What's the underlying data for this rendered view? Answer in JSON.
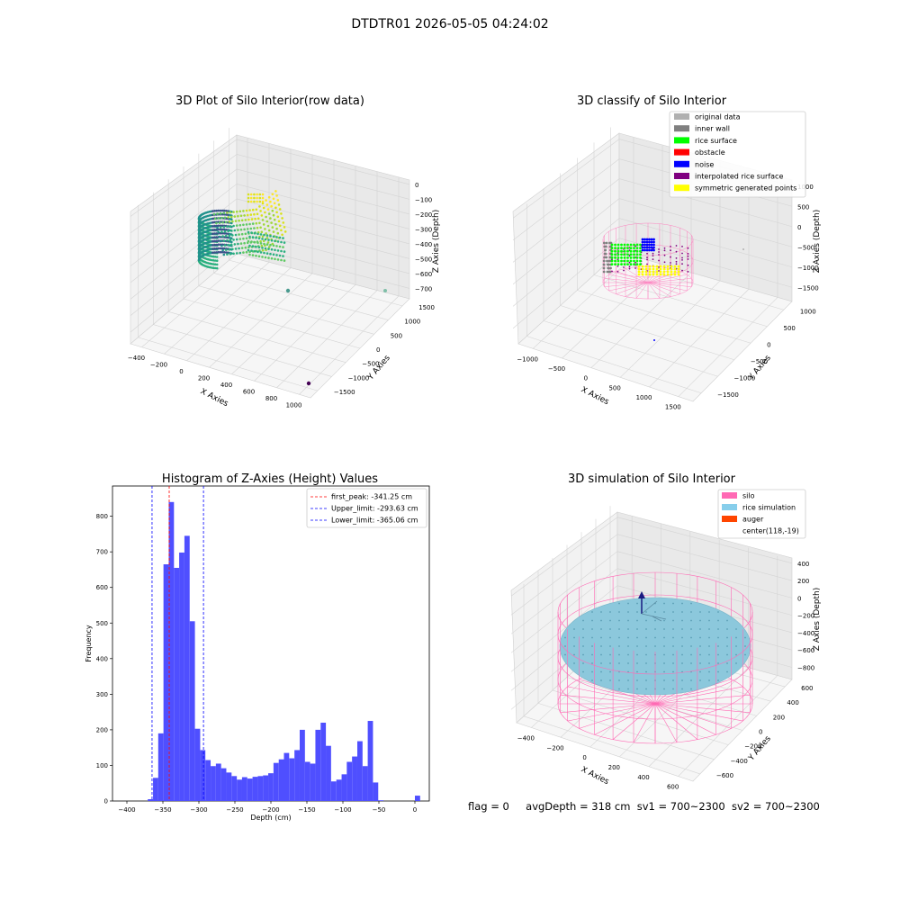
{
  "figure": {
    "title": "DTDTR01 2026-05-05 04:24:02",
    "status_line": {
      "flag": "flag = 0",
      "avg_depth": "avgDepth = 318 cm",
      "sv1": "sv1 = 700~2300",
      "sv2": "sv2 = 700~2300"
    }
  },
  "chart_data": [
    {
      "type": "scatter",
      "projection": "3d",
      "title": "3D Plot of Silo Interior(row data)",
      "xlabel": "X Axies",
      "ylabel": "Y Axies",
      "zlabel": "Z Axies (Depth)",
      "x_ticks": [
        "−400",
        "−200",
        "0",
        "200",
        "400",
        "600",
        "800",
        "1000"
      ],
      "y_ticks": [
        "1500",
        "1000",
        "500",
        "0",
        "−500",
        "−1000",
        "−1500"
      ],
      "z_ticks": [
        "0",
        "−100",
        "−200",
        "−300",
        "−400",
        "−500",
        "−600",
        "−700"
      ],
      "colormap": "viridis by depth",
      "point_cloud": {
        "x_range": [
          -280,
          700
        ],
        "z_range": [
          -540,
          -130
        ],
        "outliers": [
          {
            "x": 200,
            "y": 100,
            "z": -620
          },
          {
            "x": 1100,
            "y": 900,
            "z": -610
          },
          {
            "x": 1050,
            "y": -1400,
            "z": -700
          }
        ]
      }
    },
    {
      "type": "scatter",
      "projection": "3d",
      "title": "3D classify of Silo Interior",
      "xlabel": "X Axies",
      "ylabel": "Y Axies",
      "zlabel": "Z Axies (Depth)",
      "x_ticks": [
        "−1000",
        "−500",
        "0",
        "500",
        "1000",
        "1500"
      ],
      "y_ticks": [
        "1000",
        "500",
        "0",
        "−500",
        "−1000",
        "−1500"
      ],
      "z_ticks": [
        "1000",
        "500",
        "0",
        "−500",
        "−1000",
        "−1500"
      ],
      "legend": {
        "placement": "top-right",
        "entries": [
          {
            "label": "original data",
            "color": "#b0b0b0"
          },
          {
            "label": "inner wall",
            "color": "#808080"
          },
          {
            "label": "rice surface",
            "color": "#00ff00"
          },
          {
            "label": "obstacle",
            "color": "#ff0000"
          },
          {
            "label": "noise",
            "color": "#0000ff"
          },
          {
            "label": "interpolated rice surface",
            "color": "#800080"
          },
          {
            "label": "symmetric generated points",
            "color": "#ffff00"
          }
        ]
      }
    },
    {
      "type": "bar",
      "title": "Histogram of Z-Axies (Height) Values",
      "xlabel": "Depth (cm)",
      "ylabel": "Frequency",
      "xlim": [
        -420,
        20
      ],
      "ylim": [
        0,
        885
      ],
      "x_ticks": [
        "−400",
        "−350",
        "−300",
        "−250",
        "−200",
        "−150",
        "−100",
        "−50",
        "0"
      ],
      "y_ticks": [
        "0",
        "100",
        "200",
        "300",
        "400",
        "500",
        "600",
        "700",
        "800"
      ],
      "bar_color": "#4f4fff",
      "bin_width": 7.27,
      "bins": [
        {
          "x": -371,
          "count": 5
        },
        {
          "x": -363.7,
          "count": 65
        },
        {
          "x": -356.5,
          "count": 190
        },
        {
          "x": -349.2,
          "count": 665
        },
        {
          "x": -341.9,
          "count": 840
        },
        {
          "x": -334.6,
          "count": 655
        },
        {
          "x": -327.4,
          "count": 698
        },
        {
          "x": -320.1,
          "count": 745
        },
        {
          "x": -312.8,
          "count": 505
        },
        {
          "x": -305.5,
          "count": 203
        },
        {
          "x": -298.3,
          "count": 143
        },
        {
          "x": -291,
          "count": 115
        },
        {
          "x": -283.7,
          "count": 98
        },
        {
          "x": -276.4,
          "count": 105
        },
        {
          "x": -269.2,
          "count": 92
        },
        {
          "x": -261.9,
          "count": 80
        },
        {
          "x": -254.6,
          "count": 70
        },
        {
          "x": -247.3,
          "count": 60
        },
        {
          "x": -240.1,
          "count": 67
        },
        {
          "x": -232.8,
          "count": 63
        },
        {
          "x": -225.5,
          "count": 68
        },
        {
          "x": -218.2,
          "count": 70
        },
        {
          "x": -211,
          "count": 72
        },
        {
          "x": -203.7,
          "count": 78
        },
        {
          "x": -196.4,
          "count": 107
        },
        {
          "x": -189.1,
          "count": 117
        },
        {
          "x": -181.9,
          "count": 135
        },
        {
          "x": -174.6,
          "count": 120
        },
        {
          "x": -167.3,
          "count": 143
        },
        {
          "x": -160,
          "count": 200
        },
        {
          "x": -152.8,
          "count": 110
        },
        {
          "x": -145.5,
          "count": 105
        },
        {
          "x": -138.2,
          "count": 200
        },
        {
          "x": -130.9,
          "count": 220
        },
        {
          "x": -123.7,
          "count": 155
        },
        {
          "x": -116.4,
          "count": 55
        },
        {
          "x": -109.1,
          "count": 60
        },
        {
          "x": -101.8,
          "count": 75
        },
        {
          "x": -94.6,
          "count": 110
        },
        {
          "x": -87.3,
          "count": 125
        },
        {
          "x": -80,
          "count": 168
        },
        {
          "x": -72.7,
          "count": 98
        },
        {
          "x": -65.5,
          "count": 225
        },
        {
          "x": -58.2,
          "count": 52
        },
        {
          "x": -50.9,
          "count": 2
        },
        {
          "x": -43.6,
          "count": 0
        },
        {
          "x": -36.4,
          "count": 0
        },
        {
          "x": -29.1,
          "count": 0
        },
        {
          "x": 0,
          "count": 15
        }
      ],
      "vlines": [
        {
          "label": "first_peak: -341.25 cm",
          "x": -341.25,
          "color": "#ff0000"
        },
        {
          "label": "Upper_limit: -293.63 cm",
          "x": -293.63,
          "color": "#0000ff"
        },
        {
          "label": "Lower_limit: -365.06 cm",
          "x": -365.06,
          "color": "#0000ff"
        }
      ],
      "legend": {
        "placement": "top-right"
      }
    },
    {
      "type": "scatter",
      "projection": "3d",
      "title": "3D simulation of Silo Interior",
      "xlabel": "X Axies",
      "ylabel": "Y Axies",
      "zlabel": "Z Axies (Depth)",
      "x_ticks": [
        "−400",
        "−200",
        "0",
        "200",
        "400",
        "600"
      ],
      "y_ticks": [
        "600",
        "400",
        "200",
        "0",
        "−200",
        "−400",
        "−600"
      ],
      "z_ticks": [
        "400",
        "200",
        "0",
        "−200",
        "−400",
        "−600",
        "−800"
      ],
      "legend": {
        "placement": "top-right",
        "entries": [
          {
            "label": "silo",
            "color": "#ff69b4"
          },
          {
            "label": "rice simulation",
            "color": "#87ceeb"
          },
          {
            "label": "auger",
            "color": "#ff4500"
          },
          {
            "label": "center(118,-19)",
            "color": ""
          }
        ]
      },
      "center": {
        "x": 118,
        "y": -19
      }
    }
  ]
}
